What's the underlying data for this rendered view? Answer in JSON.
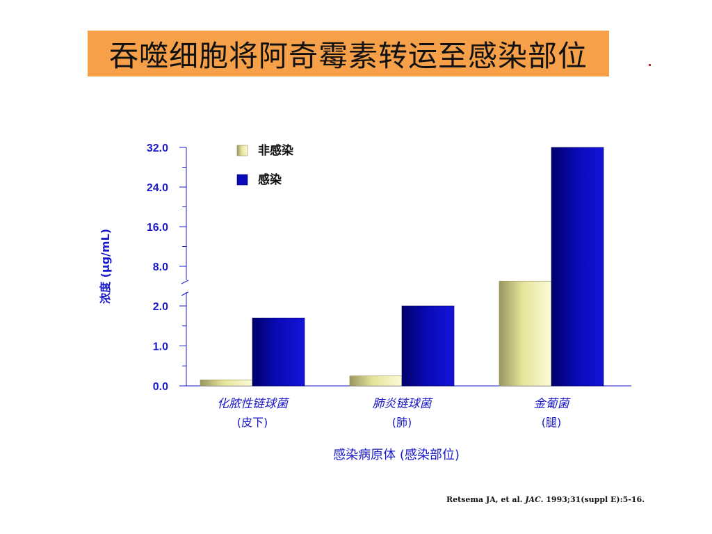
{
  "slide": {
    "title": "吞噬细胞将阿奇霉素转运至感染部位",
    "citation_pre": "Retsema JA, et al. ",
    "citation_journal": "JAC.",
    "citation_post": " 1993;31(suppl E):5-16."
  },
  "colors": {
    "title_bg": "#f7a04a",
    "axis": "#1a1ac8",
    "label_text": "#1a1ac8",
    "non_infected_bar": "#e6e49a",
    "infected_bar": "#0a0ab8"
  },
  "chart_data": {
    "type": "bar",
    "xlabel": "感染病原体 (感染部位)",
    "ylabel": "浓度 (µg/mL)",
    "categories": [
      {
        "name": "化脓性链球菌",
        "site": "(皮下)"
      },
      {
        "name": "肺炎链球菌",
        "site": "(肺)"
      },
      {
        "name": "金葡菌",
        "site": "(腿)"
      }
    ],
    "series": [
      {
        "name": "非感染",
        "values": [
          0.15,
          0.25,
          5.0
        ]
      },
      {
        "name": "感染",
        "values": [
          1.7,
          2.0,
          32.0
        ]
      }
    ],
    "y_ticks": [
      "0.0",
      "1.0",
      "2.0",
      "8.0",
      "16.0",
      "24.0",
      "32.0"
    ],
    "y_scale": "broken axis: 0–2.0 linear, 2.0–32.0 linear",
    "legend_position": "top-left",
    "grid": false
  }
}
